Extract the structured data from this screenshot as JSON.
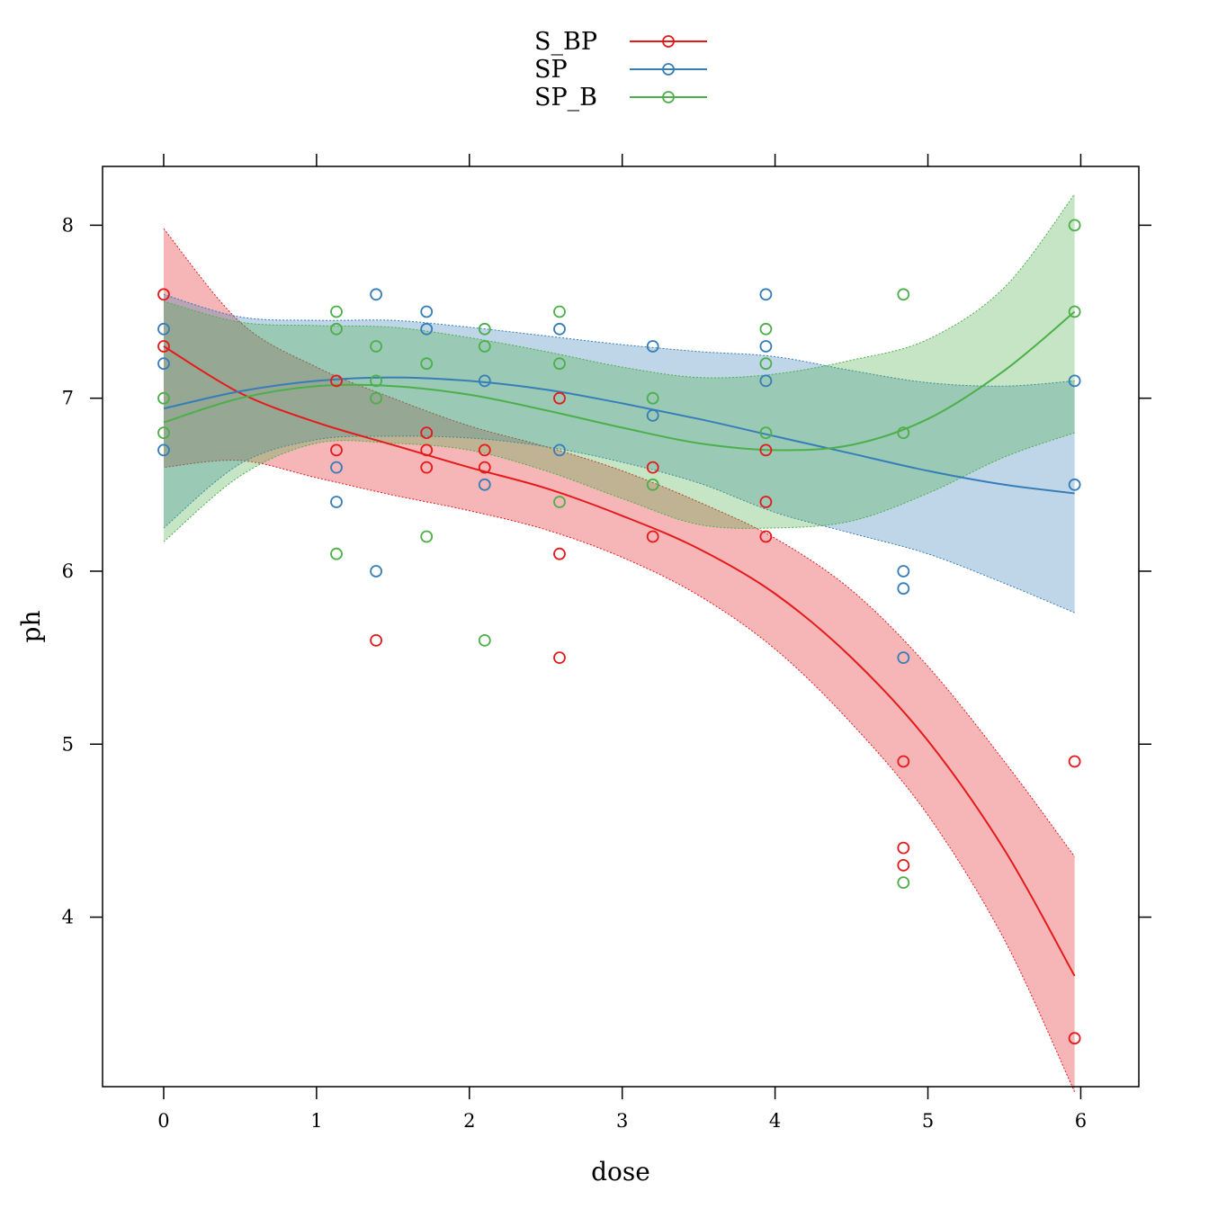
{
  "chart_data": {
    "type": "scatter",
    "title": "",
    "xlabel": "dose",
    "ylabel": "ph",
    "xlim": [
      -0.4,
      6.38
    ],
    "ylim": [
      3.02,
      8.34
    ],
    "x_ticks": [
      0,
      1,
      2,
      3,
      4,
      5,
      6
    ],
    "y_ticks": [
      4,
      5,
      6,
      7,
      8
    ],
    "grid": false,
    "legend_position": "top",
    "series": [
      {
        "name": "S_BP",
        "color": "#E41A1C",
        "points": [
          [
            0,
            7.6
          ],
          [
            0,
            7.3
          ],
          [
            1.13,
            7.1
          ],
          [
            1.13,
            6.7
          ],
          [
            1.39,
            5.6
          ],
          [
            1.72,
            6.8
          ],
          [
            1.72,
            6.7
          ],
          [
            1.72,
            6.6
          ],
          [
            2.1,
            6.7
          ],
          [
            2.1,
            6.6
          ],
          [
            2.59,
            7.0
          ],
          [
            2.59,
            6.1
          ],
          [
            2.59,
            5.5
          ],
          [
            3.2,
            6.6
          ],
          [
            3.2,
            6.2
          ],
          [
            3.94,
            6.7
          ],
          [
            3.94,
            6.4
          ],
          [
            3.94,
            6.2
          ],
          [
            4.84,
            4.9
          ],
          [
            4.84,
            4.4
          ],
          [
            4.84,
            4.3
          ],
          [
            5.96,
            4.9
          ],
          [
            5.96,
            3.3
          ]
        ],
        "fit": [
          [
            0,
            7.3
          ],
          [
            0.5,
            7.03
          ],
          [
            1.0,
            6.86
          ],
          [
            1.5,
            6.73
          ],
          [
            2.0,
            6.6
          ],
          [
            2.5,
            6.48
          ],
          [
            3.0,
            6.32
          ],
          [
            3.5,
            6.13
          ],
          [
            4.0,
            5.87
          ],
          [
            4.5,
            5.5
          ],
          [
            5.0,
            5.02
          ],
          [
            5.5,
            4.39
          ],
          [
            5.96,
            3.66
          ]
        ],
        "ci": [
          [
            0,
            6.6,
            7.98
          ],
          [
            0.5,
            6.64,
            7.44
          ],
          [
            1.0,
            6.54,
            7.18
          ],
          [
            1.5,
            6.44,
            7.0
          ],
          [
            2.0,
            6.35,
            6.84
          ],
          [
            2.5,
            6.24,
            6.72
          ],
          [
            3.0,
            6.08,
            6.58
          ],
          [
            3.5,
            5.86,
            6.4
          ],
          [
            4.0,
            5.55,
            6.19
          ],
          [
            4.5,
            5.12,
            5.89
          ],
          [
            5.0,
            4.59,
            5.45
          ],
          [
            5.5,
            3.87,
            4.9
          ],
          [
            5.96,
            2.99,
            4.35
          ]
        ]
      },
      {
        "name": "SP",
        "color": "#377EB8",
        "points": [
          [
            0,
            7.4
          ],
          [
            0,
            7.2
          ],
          [
            0,
            6.7
          ],
          [
            1.13,
            6.6
          ],
          [
            1.13,
            6.4
          ],
          [
            1.39,
            7.6
          ],
          [
            1.39,
            6.0
          ],
          [
            1.72,
            7.5
          ],
          [
            1.72,
            7.4
          ],
          [
            2.1,
            7.1
          ],
          [
            2.1,
            6.5
          ],
          [
            2.59,
            7.4
          ],
          [
            2.59,
            6.7
          ],
          [
            3.2,
            7.3
          ],
          [
            3.2,
            6.9
          ],
          [
            3.94,
            7.6
          ],
          [
            3.94,
            7.3
          ],
          [
            3.94,
            7.1
          ],
          [
            4.84,
            6.0
          ],
          [
            4.84,
            5.9
          ],
          [
            4.84,
            5.5
          ],
          [
            5.96,
            7.1
          ],
          [
            5.96,
            6.5
          ]
        ],
        "fit": [
          [
            0,
            6.94
          ],
          [
            0.5,
            7.04
          ],
          [
            1.0,
            7.1
          ],
          [
            1.5,
            7.12
          ],
          [
            2.0,
            7.1
          ],
          [
            2.5,
            7.05
          ],
          [
            3.0,
            6.97
          ],
          [
            3.5,
            6.88
          ],
          [
            4.0,
            6.78
          ],
          [
            4.5,
            6.68
          ],
          [
            5.0,
            6.58
          ],
          [
            5.5,
            6.5
          ],
          [
            5.96,
            6.45
          ]
        ],
        "ci": [
          [
            0,
            6.25,
            7.6
          ],
          [
            0.5,
            6.62,
            7.47
          ],
          [
            1.0,
            6.76,
            7.45
          ],
          [
            1.5,
            6.78,
            7.45
          ],
          [
            2.0,
            6.77,
            7.41
          ],
          [
            2.5,
            6.72,
            7.36
          ],
          [
            3.0,
            6.63,
            7.31
          ],
          [
            3.5,
            6.51,
            7.27
          ],
          [
            4.0,
            6.34,
            7.24
          ],
          [
            4.5,
            6.22,
            7.16
          ],
          [
            5.0,
            6.1,
            7.09
          ],
          [
            5.5,
            5.93,
            7.07
          ],
          [
            5.96,
            5.76,
            7.1
          ]
        ]
      },
      {
        "name": "SP_B",
        "color": "#4DAF4A",
        "points": [
          [
            0,
            7.0
          ],
          [
            0,
            6.8
          ],
          [
            1.13,
            7.5
          ],
          [
            1.13,
            7.4
          ],
          [
            1.13,
            6.1
          ],
          [
            1.39,
            7.3
          ],
          [
            1.39,
            7.1
          ],
          [
            1.39,
            7.0
          ],
          [
            1.72,
            7.2
          ],
          [
            1.72,
            6.2
          ],
          [
            2.1,
            7.4
          ],
          [
            2.1,
            7.3
          ],
          [
            2.1,
            5.6
          ],
          [
            2.59,
            7.5
          ],
          [
            2.59,
            7.2
          ],
          [
            2.59,
            6.4
          ],
          [
            3.2,
            7.0
          ],
          [
            3.2,
            6.5
          ],
          [
            3.94,
            7.4
          ],
          [
            3.94,
            7.2
          ],
          [
            3.94,
            6.8
          ],
          [
            4.84,
            7.6
          ],
          [
            4.84,
            6.8
          ],
          [
            4.84,
            4.2
          ],
          [
            5.96,
            8.0
          ],
          [
            5.96,
            7.5
          ]
        ],
        "fit": [
          [
            0,
            6.86
          ],
          [
            0.5,
            7.0
          ],
          [
            1.0,
            7.07
          ],
          [
            1.5,
            7.07
          ],
          [
            2.0,
            7.02
          ],
          [
            2.5,
            6.93
          ],
          [
            3.0,
            6.83
          ],
          [
            3.5,
            6.74
          ],
          [
            4.0,
            6.7
          ],
          [
            4.5,
            6.73
          ],
          [
            5.0,
            6.88
          ],
          [
            5.5,
            7.16
          ],
          [
            5.96,
            7.5
          ]
        ],
        "ci": [
          [
            0,
            6.17,
            7.56
          ],
          [
            0.5,
            6.55,
            7.44
          ],
          [
            1.0,
            6.74,
            7.42
          ],
          [
            1.5,
            6.74,
            7.41
          ],
          [
            2.0,
            6.7,
            7.35
          ],
          [
            2.5,
            6.58,
            7.27
          ],
          [
            3.0,
            6.42,
            7.18
          ],
          [
            3.5,
            6.27,
            7.12
          ],
          [
            4.0,
            6.25,
            7.14
          ],
          [
            4.5,
            6.29,
            7.22
          ],
          [
            5.0,
            6.45,
            7.34
          ],
          [
            5.5,
            6.66,
            7.64
          ],
          [
            5.96,
            6.8,
            8.18
          ]
        ]
      }
    ]
  }
}
